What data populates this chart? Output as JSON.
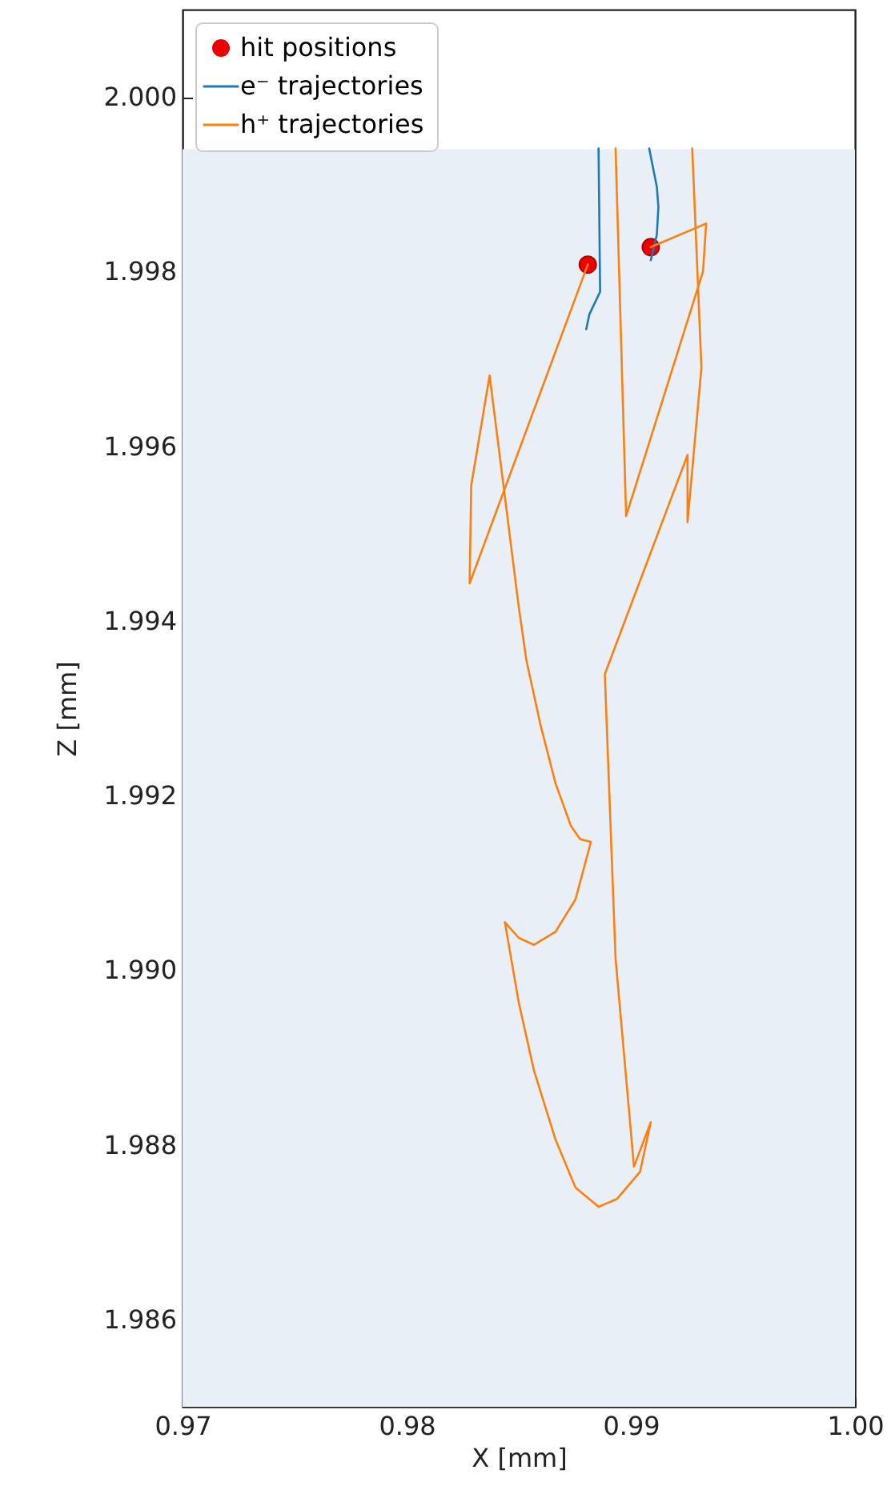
{
  "chart_data": {
    "type": "line",
    "xlabel": "X [mm]",
    "ylabel": "Z [mm]",
    "xlim": [
      0.97,
      1.0
    ],
    "xticks": [
      0.97,
      0.98,
      0.99,
      {
        "value": 1.0,
        "label": "1.00"
      }
    ],
    "ylim": [
      1.985,
      2.001
    ],
    "yticks": [
      1.986,
      1.988,
      {
        "value": 1.99,
        "label": "1.990"
      },
      1.992,
      1.994,
      1.996,
      1.998,
      {
        "value": 2.0,
        "label": "2.000"
      }
    ],
    "grid": false,
    "legend": "top left",
    "bands": [
      {
        "axis": "y",
        "from": 1.985,
        "to": 1.9994,
        "color": "#e8eff7"
      }
    ],
    "series": [
      {
        "name": "hit positions",
        "type": "scatter",
        "marker": "circle",
        "color": "#ee0000",
        "x": [
          0.98808,
          0.99089
        ],
        "values": [
          1.99808,
          1.99828
        ]
      },
      {
        "name": "e⁻ trajectories",
        "color": "#1f77b4",
        "x": [
          0.98856,
          0.98863,
          0.98815,
          0.98801
        ],
        "values": [
          1.99941,
          1.99777,
          1.99751,
          1.99734
        ]
      },
      {
        "color": "#1f77b4",
        "x": [
          0.99082,
          0.99116,
          0.99123,
          0.99116,
          0.99089
        ],
        "values": [
          1.99941,
          1.99897,
          1.99874,
          1.99842,
          1.99813
        ]
      },
      {
        "name": "h⁺ trajectories",
        "color": "#ff7f0e",
        "x": [
          0.98932,
          0.98979,
          0.99322,
          0.99336,
          0.99089
        ],
        "values": [
          1.99941,
          1.9952,
          1.998,
          1.99855,
          1.99828
        ]
      },
      {
        "color": "#ff7f0e",
        "x": [
          0.99274,
          0.99315,
          0.99253,
          0.99253,
          0.98884,
          0.98932,
          0.99014,
          0.99089,
          0.99041,
          0.98938,
          0.98856,
          0.98753,
          0.98664,
          0.98568,
          0.985,
          0.98438,
          0.985,
          0.98568,
          0.98664,
          0.98753,
          0.98822,
          0.98774,
          0.98733,
          0.98664,
          0.98596,
          0.98534,
          0.985,
          0.9837,
          0.98288,
          0.98281,
          0.98808
        ],
        "values": [
          1.99941,
          1.9969,
          1.99513,
          1.9959,
          1.99339,
          1.99013,
          1.98775,
          1.98826,
          1.98769,
          1.98738,
          1.98729,
          1.98751,
          1.98806,
          1.98885,
          1.98963,
          1.99055,
          1.99037,
          1.99029,
          1.99044,
          1.99081,
          1.99147,
          1.9915,
          1.99165,
          1.99214,
          1.99282,
          1.99355,
          1.99416,
          1.99681,
          1.99555,
          1.99443,
          1.99808
        ]
      }
    ]
  }
}
